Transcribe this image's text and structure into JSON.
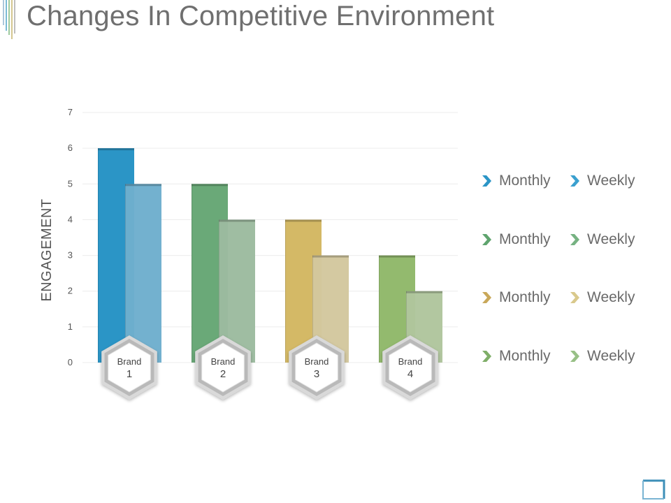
{
  "page": {
    "title": "Changes In Competitive Environment"
  },
  "colors": {
    "brand1": [
      "#2b95c6",
      "#6eaecd"
    ],
    "brand2": [
      "#6aa978",
      "#9cbb9f"
    ],
    "brand3": [
      "#d4b966",
      "#d3c79e"
    ],
    "brand4": [
      "#93ba6e",
      "#afc59d"
    ]
  },
  "chart_data": {
    "type": "bar",
    "categories": [
      {
        "top": "Brand",
        "bottom": "1"
      },
      {
        "top": "Brand",
        "bottom": "2"
      },
      {
        "top": "Brand",
        "bottom": "3"
      },
      {
        "top": "Brand",
        "bottom": "4"
      }
    ],
    "series": [
      {
        "name": "Monthly",
        "values": [
          6,
          5,
          4,
          3
        ]
      },
      {
        "name": "Weekly",
        "values": [
          5,
          4,
          3,
          2
        ]
      }
    ],
    "ylabel": "ENGAGEMENT",
    "ylim": [
      0,
      7
    ],
    "yticks": [
      "0",
      "1",
      "2",
      "3",
      "4",
      "5",
      "6",
      "7"
    ],
    "grid": true,
    "legend_position": "right",
    "legend": [
      {
        "label": "Monthly",
        "color": "#2b95c6"
      },
      {
        "label": "Weekly",
        "color": "#3aa0cf"
      },
      {
        "label": "Monthly",
        "color": "#5fa46e"
      },
      {
        "label": "Weekly",
        "color": "#76b282"
      },
      {
        "label": "Monthly",
        "color": "#c9a85a"
      },
      {
        "label": "Weekly",
        "color": "#d9c98c"
      },
      {
        "label": "Monthly",
        "color": "#7fae68"
      },
      {
        "label": "Weekly",
        "color": "#98c086"
      }
    ]
  }
}
